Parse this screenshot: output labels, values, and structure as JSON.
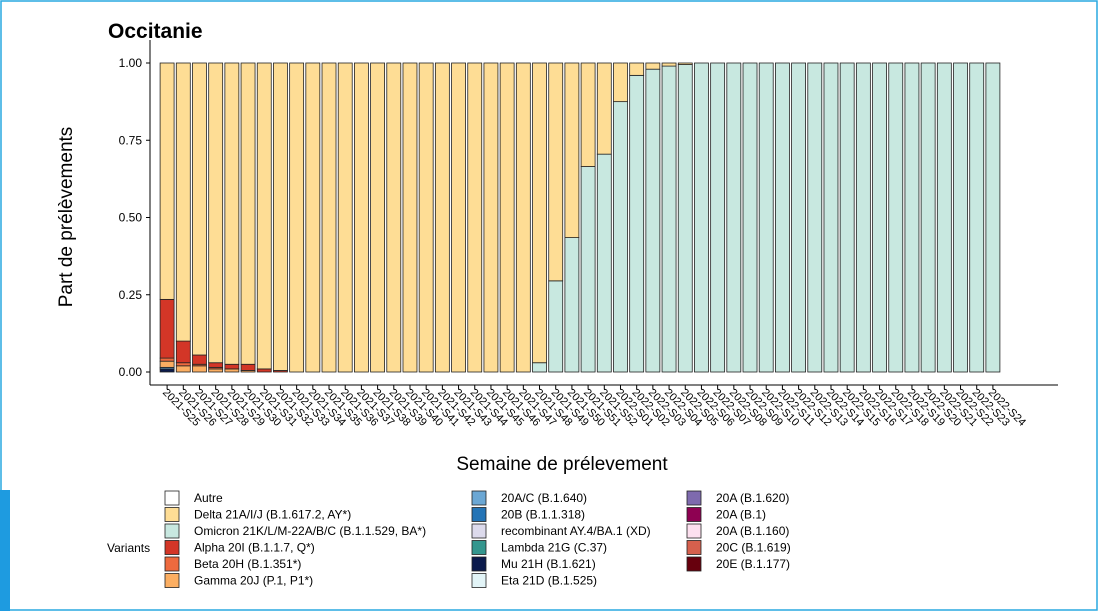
{
  "chart_data": {
    "type": "stacked_bar",
    "title": "Occitanie",
    "x_label": "Semaine de prélevement",
    "y_label": "Part de prélèvements",
    "legend_title": "Variants",
    "categories": [
      "2021-S25",
      "2021-S26",
      "2021-S27",
      "2021-S28",
      "2021-S29",
      "2021-S30",
      "2021-S31",
      "2021-S32",
      "2021-S33",
      "2021-S34",
      "2021-S35",
      "2021-S36",
      "2021-S37",
      "2021-S38",
      "2021-S39",
      "2021-S40",
      "2021-S41",
      "2021-S42",
      "2021-S43",
      "2021-S44",
      "2021-S45",
      "2021-S46",
      "2021-S47",
      "2021-S48",
      "2021-S49",
      "2021-S50",
      "2021-S51",
      "2021-S52",
      "2022-S01",
      "2022-S02",
      "2022-S03",
      "2022-S04",
      "2022-S05",
      "2022-S06",
      "2022-S07",
      "2022-S08",
      "2022-S09",
      "2022-S10",
      "2022-S11",
      "2022-S12",
      "2022-S13",
      "2022-S14",
      "2022-S15",
      "2022-S16",
      "2022-S17",
      "2022-S18",
      "2022-S19",
      "2022-S20",
      "2022-S21",
      "2022-S22",
      "2022-S23",
      "2022-S24"
    ],
    "ylim": [
      0,
      1
    ],
    "yticks": [
      {
        "value": 0,
        "label": "0.00"
      },
      {
        "value": 0.25,
        "label": "0.25"
      },
      {
        "value": 0.5,
        "label": "0.50"
      },
      {
        "value": 0.75,
        "label": "0.75"
      },
      {
        "value": 1,
        "label": "1.00"
      }
    ],
    "series": [
      {
        "name": "Autre",
        "color": "#ffffff",
        "values": [
          0,
          0,
          0,
          0,
          0,
          0,
          0,
          0,
          0,
          0,
          0,
          0,
          0,
          0,
          0,
          0,
          0,
          0,
          0,
          0,
          0,
          0,
          0,
          0,
          0,
          0,
          0,
          0,
          0,
          0,
          0,
          0,
          0,
          0,
          0,
          0,
          0,
          0,
          0,
          0,
          0,
          0,
          0,
          0,
          0,
          0,
          0,
          0,
          0,
          0,
          0,
          0
        ]
      },
      {
        "name": "Delta 21A/I/J (B.1.617.2, AY*)",
        "color": "#fedd95",
        "values": [
          0.765,
          0.9,
          0.945,
          0.97,
          0.975,
          0.975,
          0.99,
          0.995,
          1,
          1,
          1,
          1,
          1,
          1,
          1,
          1,
          1,
          1,
          1,
          1,
          1,
          1,
          1,
          0.97,
          0.705,
          0.565,
          0.335,
          0.295,
          0.125,
          0.04,
          0.02,
          0.01,
          0.005,
          0,
          0,
          0,
          0,
          0,
          0,
          0,
          0,
          0,
          0,
          0,
          0,
          0,
          0,
          0,
          0,
          0,
          0,
          0
        ]
      },
      {
        "name": "Omicron 21K/L/M-22A/B/C (B.1.1.529, BA*)",
        "color": "#c8e8e0",
        "values": [
          0,
          0,
          0,
          0,
          0,
          0,
          0,
          0,
          0,
          0,
          0,
          0,
          0,
          0,
          0,
          0,
          0,
          0,
          0,
          0,
          0,
          0,
          0,
          0.03,
          0.295,
          0.435,
          0.665,
          0.705,
          0.875,
          0.96,
          0.98,
          0.99,
          0.995,
          1,
          1,
          1,
          1,
          1,
          1,
          1,
          1,
          1,
          1,
          1,
          1,
          1,
          1,
          1,
          1,
          1,
          1,
          1
        ]
      },
      {
        "name": "Alpha 20I (B.1.1.7, Q*)",
        "color": "#d33627",
        "values": [
          0.19,
          0.07,
          0.03,
          0.015,
          0.015,
          0.02,
          0.01,
          0.005,
          0,
          0,
          0,
          0,
          0,
          0,
          0,
          0,
          0,
          0,
          0,
          0,
          0,
          0,
          0,
          0,
          0,
          0,
          0,
          0,
          0,
          0,
          0,
          0,
          0,
          0,
          0,
          0,
          0,
          0,
          0,
          0,
          0,
          0,
          0,
          0,
          0,
          0,
          0,
          0,
          0,
          0,
          0,
          0
        ]
      },
      {
        "name": "Beta 20H (B.1.351*)",
        "color": "#ee6a3e",
        "values": [
          0.01,
          0.01,
          0.005,
          0.005,
          0,
          0,
          0,
          0,
          0,
          0,
          0,
          0,
          0,
          0,
          0,
          0,
          0,
          0,
          0,
          0,
          0,
          0,
          0,
          0,
          0,
          0,
          0,
          0,
          0,
          0,
          0,
          0,
          0,
          0,
          0,
          0,
          0,
          0,
          0,
          0,
          0,
          0,
          0,
          0,
          0,
          0,
          0,
          0,
          0,
          0,
          0,
          0
        ]
      },
      {
        "name": "Gamma 20J (P.1, P1*)",
        "color": "#fbae62",
        "values": [
          0.02,
          0.02,
          0.02,
          0.01,
          0.01,
          0.005,
          0,
          0,
          0,
          0,
          0,
          0,
          0,
          0,
          0,
          0,
          0,
          0,
          0,
          0,
          0,
          0,
          0,
          0,
          0,
          0,
          0,
          0,
          0,
          0,
          0,
          0,
          0,
          0,
          0,
          0,
          0,
          0,
          0,
          0,
          0,
          0,
          0,
          0,
          0,
          0,
          0,
          0,
          0,
          0,
          0,
          0
        ]
      },
      {
        "name": "20A/C (B.1.640)",
        "color": "#6ba7d4",
        "values": [
          0.005,
          0,
          0,
          0,
          0,
          0,
          0,
          0,
          0,
          0,
          0,
          0,
          0,
          0,
          0,
          0,
          0,
          0,
          0,
          0,
          0,
          0,
          0,
          0,
          0,
          0,
          0,
          0,
          0,
          0,
          0,
          0,
          0,
          0,
          0,
          0,
          0,
          0,
          0,
          0,
          0,
          0,
          0,
          0,
          0,
          0,
          0,
          0,
          0,
          0,
          0,
          0
        ]
      },
      {
        "name": "20B (B.1.1.318)",
        "color": "#2474b6",
        "values": [
          0,
          0,
          0,
          0,
          0,
          0,
          0,
          0,
          0,
          0,
          0,
          0,
          0,
          0,
          0,
          0,
          0,
          0,
          0,
          0,
          0,
          0,
          0,
          0,
          0,
          0,
          0,
          0,
          0,
          0,
          0,
          0,
          0,
          0,
          0,
          0,
          0,
          0,
          0,
          0,
          0,
          0,
          0,
          0,
          0,
          0,
          0,
          0,
          0,
          0,
          0,
          0
        ]
      },
      {
        "name": "recombinant AY.4/BA.1 (XD)",
        "color": "#dcdaec",
        "values": [
          0,
          0,
          0,
          0,
          0,
          0,
          0,
          0,
          0,
          0,
          0,
          0,
          0,
          0,
          0,
          0,
          0,
          0,
          0,
          0,
          0,
          0,
          0,
          0,
          0,
          0,
          0,
          0,
          0,
          0,
          0,
          0,
          0,
          0,
          0,
          0,
          0,
          0,
          0,
          0,
          0,
          0,
          0,
          0,
          0,
          0,
          0,
          0,
          0,
          0,
          0,
          0
        ]
      },
      {
        "name": "Lambda 21G (C.37)",
        "color": "#34968e",
        "values": [
          0,
          0,
          0,
          0,
          0,
          0,
          0,
          0,
          0,
          0,
          0,
          0,
          0,
          0,
          0,
          0,
          0,
          0,
          0,
          0,
          0,
          0,
          0,
          0,
          0,
          0,
          0,
          0,
          0,
          0,
          0,
          0,
          0,
          0,
          0,
          0,
          0,
          0,
          0,
          0,
          0,
          0,
          0,
          0,
          0,
          0,
          0,
          0,
          0,
          0,
          0,
          0
        ]
      },
      {
        "name": "Mu 21H (B.1.621)",
        "color": "#0b1a4c",
        "values": [
          0.01,
          0,
          0,
          0,
          0,
          0,
          0,
          0,
          0,
          0,
          0,
          0,
          0,
          0,
          0,
          0,
          0,
          0,
          0,
          0,
          0,
          0,
          0,
          0,
          0,
          0,
          0,
          0,
          0,
          0,
          0,
          0,
          0,
          0,
          0,
          0,
          0,
          0,
          0,
          0,
          0,
          0,
          0,
          0,
          0,
          0,
          0,
          0,
          0,
          0,
          0,
          0
        ]
      },
      {
        "name": "Eta 21D (B.1.525)",
        "color": "#e2f4f7",
        "values": [
          0,
          0,
          0,
          0,
          0,
          0,
          0,
          0,
          0,
          0,
          0,
          0,
          0,
          0,
          0,
          0,
          0,
          0,
          0,
          0,
          0,
          0,
          0,
          0,
          0,
          0,
          0,
          0,
          0,
          0,
          0,
          0,
          0,
          0,
          0,
          0,
          0,
          0,
          0,
          0,
          0,
          0,
          0,
          0,
          0,
          0,
          0,
          0,
          0,
          0,
          0,
          0
        ]
      },
      {
        "name": "20A (B.1.620)",
        "color": "#7e6aae",
        "values": [
          0,
          0,
          0,
          0,
          0,
          0,
          0,
          0,
          0,
          0,
          0,
          0,
          0,
          0,
          0,
          0,
          0,
          0,
          0,
          0,
          0,
          0,
          0,
          0,
          0,
          0,
          0,
          0,
          0,
          0,
          0,
          0,
          0,
          0,
          0,
          0,
          0,
          0,
          0,
          0,
          0,
          0,
          0,
          0,
          0,
          0,
          0,
          0,
          0,
          0,
          0,
          0
        ]
      },
      {
        "name": "20A (B.1)",
        "color": "#8e0152",
        "values": [
          0,
          0,
          0,
          0,
          0,
          0,
          0,
          0,
          0,
          0,
          0,
          0,
          0,
          0,
          0,
          0,
          0,
          0,
          0,
          0,
          0,
          0,
          0,
          0,
          0,
          0,
          0,
          0,
          0,
          0,
          0,
          0,
          0,
          0,
          0,
          0,
          0,
          0,
          0,
          0,
          0,
          0,
          0,
          0,
          0,
          0,
          0,
          0,
          0,
          0,
          0,
          0
        ]
      },
      {
        "name": "20A (B.1.160)",
        "color": "#fde0ef",
        "values": [
          0,
          0,
          0,
          0,
          0,
          0,
          0,
          0,
          0,
          0,
          0,
          0,
          0,
          0,
          0,
          0,
          0,
          0,
          0,
          0,
          0,
          0,
          0,
          0,
          0,
          0,
          0,
          0,
          0,
          0,
          0,
          0,
          0,
          0,
          0,
          0,
          0,
          0,
          0,
          0,
          0,
          0,
          0,
          0,
          0,
          0,
          0,
          0,
          0,
          0,
          0,
          0
        ]
      },
      {
        "name": "20C (B.1.619)",
        "color": "#d6604d",
        "values": [
          0,
          0,
          0,
          0,
          0,
          0,
          0,
          0,
          0,
          0,
          0,
          0,
          0,
          0,
          0,
          0,
          0,
          0,
          0,
          0,
          0,
          0,
          0,
          0,
          0,
          0,
          0,
          0,
          0,
          0,
          0,
          0,
          0,
          0,
          0,
          0,
          0,
          0,
          0,
          0,
          0,
          0,
          0,
          0,
          0,
          0,
          0,
          0,
          0,
          0,
          0,
          0
        ]
      },
      {
        "name": "20E (B.1.177)",
        "color": "#67000d",
        "values": [
          0,
          0,
          0,
          0,
          0,
          0,
          0,
          0,
          0,
          0,
          0,
          0,
          0,
          0,
          0,
          0,
          0,
          0,
          0,
          0,
          0,
          0,
          0,
          0,
          0,
          0,
          0,
          0,
          0,
          0,
          0,
          0,
          0,
          0,
          0,
          0,
          0,
          0,
          0,
          0,
          0,
          0,
          0,
          0,
          0,
          0,
          0,
          0,
          0,
          0,
          0,
          0
        ]
      }
    ]
  }
}
